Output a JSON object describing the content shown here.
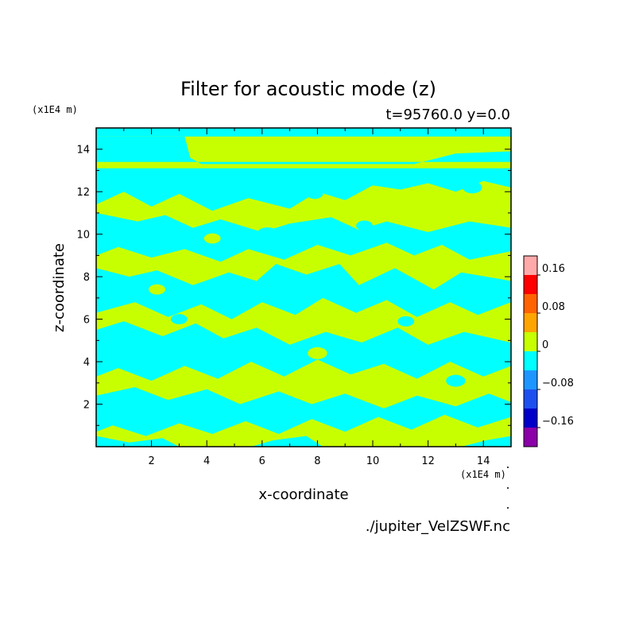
{
  "chart_data": {
    "type": "heatmap",
    "title": "Filter for acoustic mode (z)",
    "subtitle": "t=95760.0 y=0.0",
    "xlabel": "x-coordinate",
    "ylabel": "z-coordinate",
    "x_unit": "(x1E4 m)",
    "y_unit": "(x1E4 m)",
    "xlim": [
      0,
      15
    ],
    "ylim": [
      0,
      15
    ],
    "x_ticks": [
      {
        "value": 2,
        "label": "2"
      },
      {
        "value": 4,
        "label": "4"
      },
      {
        "value": 6,
        "label": "6"
      },
      {
        "value": 8,
        "label": "8"
      },
      {
        "value": 10,
        "label": "10"
      },
      {
        "value": 12,
        "label": "12"
      },
      {
        "value": 14,
        "label": "14"
      }
    ],
    "y_ticks": [
      {
        "value": 2,
        "label": "2"
      },
      {
        "value": 4,
        "label": "4"
      },
      {
        "value": 6,
        "label": "6"
      },
      {
        "value": 8,
        "label": "8"
      },
      {
        "value": 10,
        "label": "10"
      },
      {
        "value": 12,
        "label": "12"
      },
      {
        "value": 14,
        "label": "14"
      }
    ],
    "colorbar": {
      "levels": [
        -0.2,
        -0.16,
        -0.12,
        -0.08,
        -0.04,
        0,
        0.04,
        0.08,
        0.12,
        0.16,
        0.2
      ],
      "colors": [
        "#8b00a8",
        "#0000c8",
        "#1e50f0",
        "#1e96ff",
        "#00ffff",
        "#c8ff00",
        "#ffa500",
        "#ff6400",
        "#ff0000",
        "#ffaaaa"
      ],
      "tick_labels": [
        {
          "value": 0.16,
          "label": "0.16"
        },
        {
          "value": 0.08,
          "label": "0.08"
        },
        {
          "value": 0,
          "label": "0"
        },
        {
          "value": -0.08,
          "label": "−0.08"
        },
        {
          "value": -0.16,
          "label": "−0.16"
        }
      ]
    },
    "field_colors": {
      "positive": "#c8ff00",
      "negative": "#00ffff"
    }
  },
  "source_file": "./jupiter_VelZSWF.nc"
}
